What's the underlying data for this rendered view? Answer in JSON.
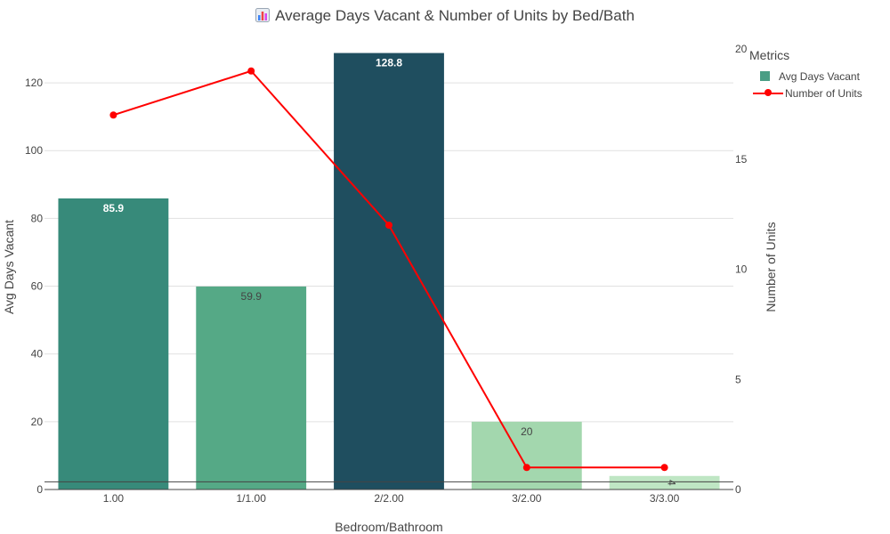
{
  "chart_data": {
    "type": "bar",
    "title": "Average Days Vacant & Number of Units by Bed/Bath",
    "title_icon": "bar-chart-icon",
    "xlabel": "Bedroom/Bathroom",
    "ylabel": "Avg Days Vacant",
    "y2label": "Number of Units",
    "categories": [
      "1.00",
      "1/1.00",
      "2/2.00",
      "3/2.00",
      "3/3.00"
    ],
    "ylim": [
      0,
      130
    ],
    "y2lim": [
      0,
      20
    ],
    "yticks": [
      0,
      20,
      40,
      60,
      80,
      100,
      120
    ],
    "y2ticks": [
      0,
      5,
      10,
      15,
      20
    ],
    "grid": true,
    "legend_title": "Metrics",
    "legend_position": "top-right",
    "series": [
      {
        "name": "Avg Days Vacant",
        "type": "bar",
        "axis": "left",
        "values": [
          85.9,
          59.9,
          128.8,
          20,
          4
        ],
        "labels": [
          "85.9",
          "59.9",
          "128.8",
          "20",
          "4"
        ],
        "colors": [
          "#378a7a",
          "#55a986",
          "#1f4e5f",
          "#a3d7ae",
          "#bfe6c4"
        ],
        "label_colors": [
          "#ffffff",
          "#444444",
          "#ffffff",
          "#444444",
          "#444444"
        ],
        "legend_color": "#4a9e85"
      },
      {
        "name": "Number of Units",
        "type": "line",
        "axis": "right",
        "values": [
          17,
          19,
          12,
          1,
          1
        ],
        "color": "#ff0000"
      }
    ]
  }
}
